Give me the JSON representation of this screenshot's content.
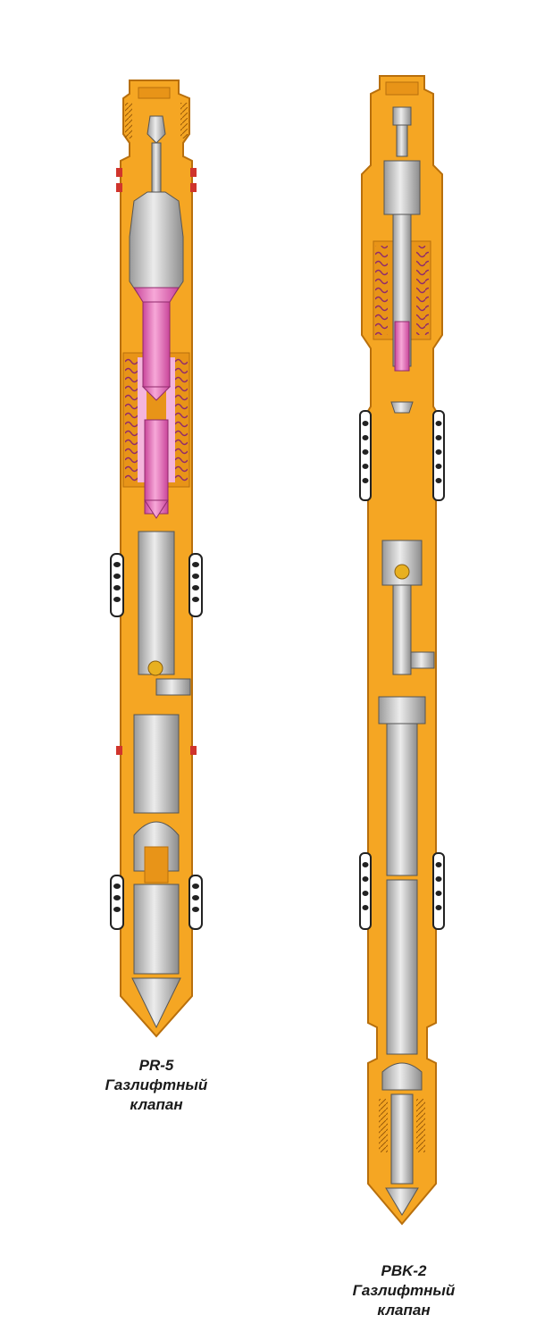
{
  "valves": [
    {
      "model": "PR-5",
      "type_label": "Газлифтный",
      "type_label_2": "клапан"
    },
    {
      "model": "PBK-2",
      "type_label": "Газлифтный",
      "type_label_2": "клапан"
    }
  ],
  "colors": {
    "body": "#F5A623",
    "body_edge": "#C97A10",
    "metal": "#C8C8C8",
    "metal_dark": "#8F8F8F",
    "bellows": "#E36BB6",
    "seal": "#D0342C"
  }
}
